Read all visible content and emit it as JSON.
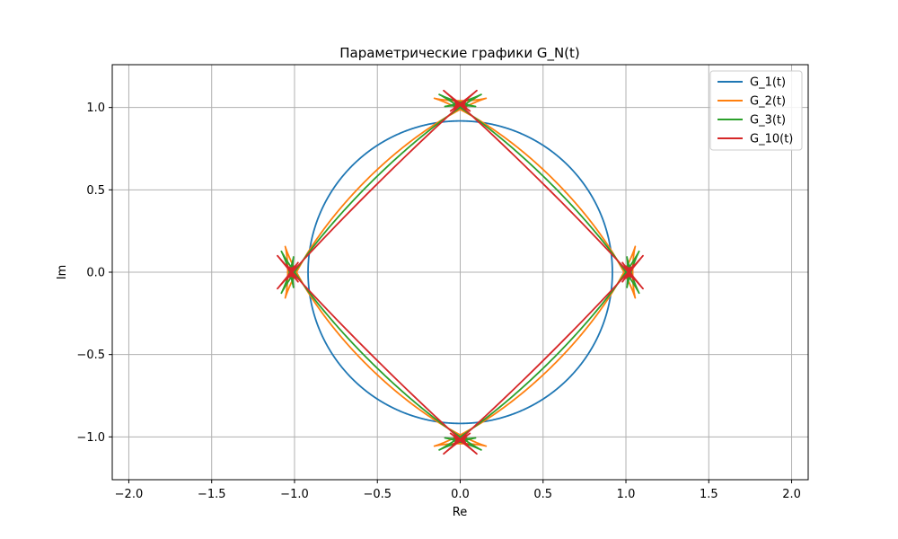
{
  "chart_data": {
    "type": "line",
    "title": "Параметрические графики G_N(t)",
    "xlabel": "Re",
    "ylabel": "Im",
    "xlim": [
      -2.1,
      2.1
    ],
    "ylim": [
      -1.26,
      1.26
    ],
    "xticks": [
      -2.0,
      -1.5,
      -1.0,
      -0.5,
      0.0,
      0.5,
      1.0,
      1.5,
      2.0
    ],
    "xtick_labels": [
      "−2.0",
      "−1.5",
      "−1.0",
      "−0.5",
      "0.0",
      "0.5",
      "1.0",
      "1.5",
      "2.0"
    ],
    "yticks": [
      -1.0,
      -0.5,
      0.0,
      0.5,
      1.0
    ],
    "ytick_labels": [
      "−1.0",
      "−0.5",
      "0.0",
      "0.5",
      "1.0"
    ],
    "grid": true,
    "legend_position": "top-right",
    "series": [
      {
        "name": "G_1(t)",
        "color": "#1f77b4",
        "N": 1
      },
      {
        "name": "G_2(t)",
        "color": "#ff7f0e",
        "N": 2
      },
      {
        "name": "G_3(t)",
        "color": "#2ca02c",
        "N": 3
      },
      {
        "name": "G_10(t)",
        "color": "#d62728",
        "N": 10
      }
    ]
  }
}
